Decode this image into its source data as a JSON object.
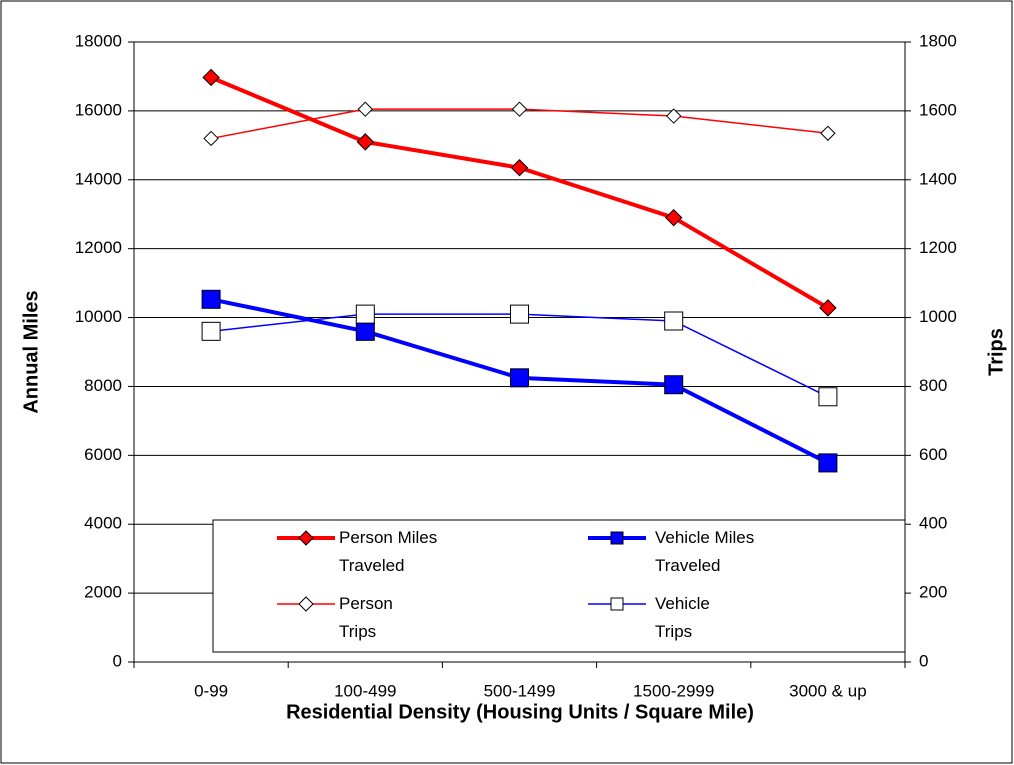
{
  "chart_data": {
    "type": "line",
    "x_label": "Residential Density (Housing Units / Square Mile)",
    "y_label": "Annual Miles",
    "y2_label": "Trips",
    "categories": [
      "0-99",
      "100-499",
      "500-1499",
      "1500-2999",
      "3000 & up"
    ],
    "ylim": [
      0,
      18000
    ],
    "yticks": [
      0,
      2000,
      4000,
      6000,
      8000,
      10000,
      12000,
      14000,
      16000,
      18000
    ],
    "y2lim": [
      0,
      1800
    ],
    "y2ticks": [
      0,
      200,
      400,
      600,
      800,
      1000,
      1200,
      1400,
      1600,
      1800
    ],
    "grid": true,
    "legend": "bottom-right",
    "series": [
      {
        "name": "Person Miles Traveled",
        "color": "#ff0000",
        "values": [
          16970,
          15100,
          14350,
          12900,
          10280
        ],
        "marker": "diamond",
        "filled": true,
        "thick": true
      },
      {
        "name": "Vehicle Miles Traveled",
        "color": "#0000ff",
        "values": [
          10530,
          9600,
          8250,
          8050,
          5780
        ],
        "marker": "square",
        "filled": true,
        "thick": true
      },
      {
        "name": "Person Trips",
        "color": "#ff0000",
        "values": [
          1520,
          1605,
          1605,
          1585,
          1535
        ],
        "marker": "diamond",
        "filled": false,
        "thick": false,
        "axis": "y2"
      },
      {
        "name": "Vehicle Trips",
        "color": "#0000ff",
        "values": [
          960,
          1010,
          1010,
          990,
          770
        ],
        "marker": "square",
        "filled": false,
        "thick": false,
        "axis": "y2"
      }
    ]
  }
}
